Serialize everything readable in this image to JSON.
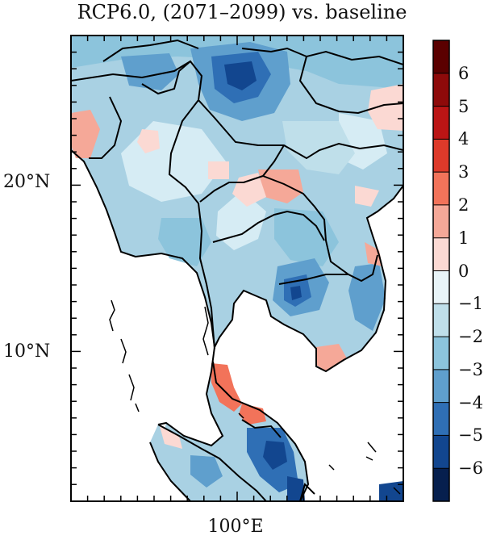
{
  "title": "RCP6.0, (2071–2099) vs. baseline",
  "axes": {
    "lat_labels": [
      "20°N",
      "10°N"
    ],
    "lon_labels": [
      "100°E"
    ]
  },
  "colorbar": {
    "labels": [
      "6",
      "5",
      "4",
      "3",
      "2",
      "1",
      "0",
      "−1",
      "−2",
      "−3",
      "−4",
      "−5",
      "−6"
    ],
    "bins": [
      "#5b0000",
      "#8e0a0a",
      "#bb1515",
      "#dd3a2a",
      "#f2735a",
      "#f5a898",
      "#fbd9d3",
      "#e8f4f8",
      "#bfdfea",
      "#8cc4dc",
      "#5f9fcd",
      "#2f6fb5",
      "#12468f",
      "#061f4e"
    ]
  },
  "colors": {
    "frame": "#000000",
    "ocean": "#ffffff",
    "land_base": "#a9d1e3"
  }
}
